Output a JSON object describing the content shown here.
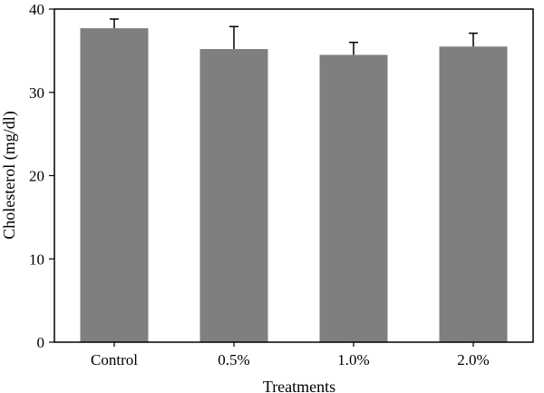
{
  "chart_data": {
    "type": "bar",
    "title": "",
    "xlabel": "Treatments",
    "ylabel": "Cholesterol (mg/dl)",
    "categories": [
      "Control",
      "0.5%",
      "1.0%",
      "2.0%"
    ],
    "values": [
      37.7,
      35.2,
      34.5,
      35.5
    ],
    "error_plus": [
      1.1,
      2.7,
      1.5,
      1.6
    ],
    "ylim": [
      0,
      40
    ],
    "yticks": [
      0,
      10,
      20,
      30,
      40
    ],
    "grid": false,
    "legend": "none",
    "bar_color": "#7f7f7f",
    "axis_color": "#000000"
  }
}
